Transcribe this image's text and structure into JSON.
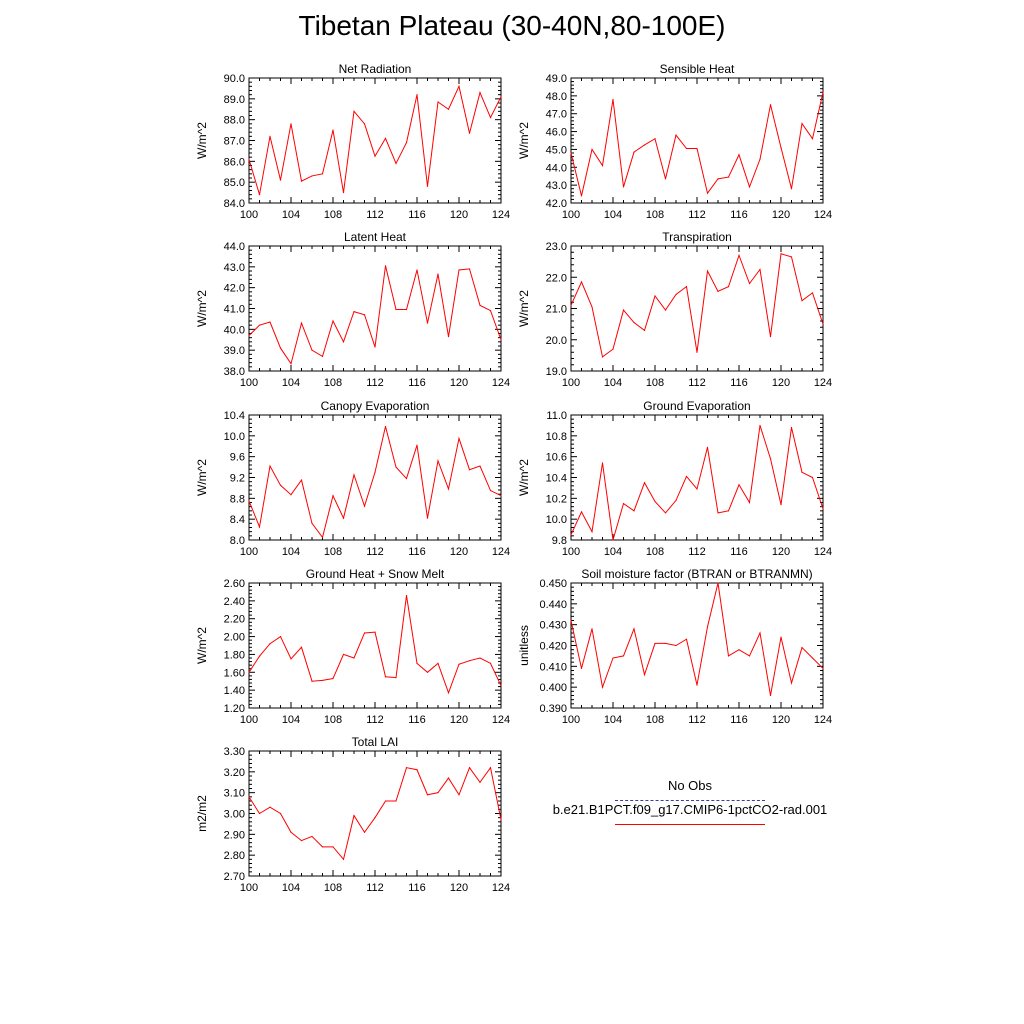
{
  "title": "Tibetan Plateau (30-40N,80-100E)",
  "colors": {
    "model": "#ff0000",
    "obs": "#3b3bb0",
    "axis": "#000000"
  },
  "legend": {
    "obs_label": "No Obs",
    "model_label": "b.e21.B1PCT.f09_g17.CMIP6-1pctCO2-rad.001"
  },
  "chart_data": [
    {
      "type": "line",
      "title": "Net Radiation",
      "ylabel": "W/m^2",
      "xlim": [
        100,
        124
      ],
      "ylim": [
        84.0,
        90.0
      ],
      "xticks": [
        100,
        104,
        108,
        112,
        116,
        120,
        124
      ],
      "yticks": [
        "84.0",
        "85.0",
        "86.0",
        "87.0",
        "88.0",
        "89.0",
        "90.0"
      ],
      "x": [
        100,
        101,
        102,
        103,
        104,
        105,
        106,
        107,
        108,
        109,
        110,
        111,
        112,
        113,
        114,
        115,
        116,
        117,
        118,
        119,
        120,
        121,
        122,
        123,
        124
      ],
      "series": [
        {
          "values": [
            86.1,
            84.4,
            87.2,
            85.1,
            87.8,
            85.05,
            85.3,
            85.4,
            87.5,
            84.5,
            88.4,
            87.8,
            86.25,
            87.1,
            85.9,
            86.9,
            89.2,
            84.8,
            88.85,
            88.5,
            89.6,
            87.35,
            89.3,
            88.1,
            89.1
          ]
        }
      ]
    },
    {
      "type": "line",
      "title": "Sensible Heat",
      "ylabel": "W/m^2",
      "xlim": [
        100,
        124
      ],
      "ylim": [
        42.0,
        49.0
      ],
      "xticks": [
        100,
        104,
        108,
        112,
        116,
        120,
        124
      ],
      "yticks": [
        "42.0",
        "43.0",
        "44.0",
        "45.0",
        "46.0",
        "47.0",
        "48.0",
        "49.0"
      ],
      "x": [
        100,
        101,
        102,
        103,
        104,
        105,
        106,
        107,
        108,
        109,
        110,
        111,
        112,
        113,
        114,
        115,
        116,
        117,
        118,
        119,
        120,
        121,
        122,
        123,
        124
      ],
      "series": [
        {
          "values": [
            44.8,
            42.4,
            45.0,
            44.1,
            47.8,
            42.9,
            44.85,
            45.25,
            45.6,
            43.35,
            45.8,
            45.05,
            45.05,
            42.55,
            43.35,
            43.45,
            44.7,
            42.9,
            44.45,
            47.5,
            45.1,
            42.8,
            46.45,
            45.6,
            48.2
          ]
        }
      ]
    },
    {
      "type": "line",
      "title": "Latent Heat",
      "ylabel": "W/m^2",
      "xlim": [
        100,
        124
      ],
      "ylim": [
        38.0,
        44.0
      ],
      "xticks": [
        100,
        104,
        108,
        112,
        116,
        120,
        124
      ],
      "yticks": [
        "38.0",
        "39.0",
        "40.0",
        "41.0",
        "42.0",
        "43.0",
        "44.0"
      ],
      "x": [
        100,
        101,
        102,
        103,
        104,
        105,
        106,
        107,
        108,
        109,
        110,
        111,
        112,
        113,
        114,
        115,
        116,
        117,
        118,
        119,
        120,
        121,
        122,
        123,
        124
      ],
      "series": [
        {
          "values": [
            39.7,
            40.2,
            40.35,
            39.1,
            38.35,
            40.3,
            39.0,
            38.7,
            40.4,
            39.4,
            40.85,
            40.7,
            39.15,
            43.05,
            40.95,
            40.95,
            42.85,
            40.3,
            42.65,
            39.65,
            42.85,
            42.9,
            41.15,
            40.9,
            39.5
          ]
        }
      ]
    },
    {
      "type": "line",
      "title": "Transpiration",
      "ylabel": "W/m^2",
      "xlim": [
        100,
        124
      ],
      "ylim": [
        19.0,
        23.0
      ],
      "xticks": [
        100,
        104,
        108,
        112,
        116,
        120,
        124
      ],
      "yticks": [
        "19.0",
        "20.0",
        "21.0",
        "22.0",
        "23.0"
      ],
      "x": [
        100,
        101,
        102,
        103,
        104,
        105,
        106,
        107,
        108,
        109,
        110,
        111,
        112,
        113,
        114,
        115,
        116,
        117,
        118,
        119,
        120,
        121,
        122,
        123,
        124
      ],
      "series": [
        {
          "values": [
            21.1,
            21.85,
            21.05,
            19.45,
            19.7,
            20.95,
            20.55,
            20.3,
            21.4,
            20.95,
            21.45,
            21.7,
            19.6,
            22.2,
            21.55,
            21.7,
            22.7,
            21.8,
            22.25,
            20.1,
            22.75,
            22.65,
            21.25,
            21.5,
            20.5
          ]
        }
      ]
    },
    {
      "type": "line",
      "title": "Canopy Evaporation",
      "ylabel": "W/m^2",
      "xlim": [
        100,
        124
      ],
      "ylim": [
        8.0,
        10.4
      ],
      "xticks": [
        100,
        104,
        108,
        112,
        116,
        120,
        124
      ],
      "yticks": [
        "8.0",
        "8.4",
        "8.8",
        "9.2",
        "9.6",
        "10.0",
        "10.4"
      ],
      "x": [
        100,
        101,
        102,
        103,
        104,
        105,
        106,
        107,
        108,
        109,
        110,
        111,
        112,
        113,
        114,
        115,
        116,
        117,
        118,
        119,
        120,
        121,
        122,
        123,
        124
      ],
      "series": [
        {
          "values": [
            8.75,
            8.25,
            9.42,
            9.05,
            8.87,
            9.15,
            8.32,
            8.05,
            8.85,
            8.42,
            9.25,
            8.65,
            9.3,
            10.18,
            9.4,
            9.18,
            9.82,
            8.42,
            9.52,
            8.98,
            9.95,
            9.35,
            9.42,
            8.95,
            8.85
          ]
        }
      ]
    },
    {
      "type": "line",
      "title": "Ground Evaporation",
      "ylabel": "W/m^2",
      "xlim": [
        100,
        124
      ],
      "ylim": [
        9.8,
        11.0
      ],
      "xticks": [
        100,
        104,
        108,
        112,
        116,
        120,
        124
      ],
      "yticks": [
        "9.8",
        "10.0",
        "10.2",
        "10.4",
        "10.6",
        "10.8",
        "11.0"
      ],
      "x": [
        100,
        101,
        102,
        103,
        104,
        105,
        106,
        107,
        108,
        109,
        110,
        111,
        112,
        113,
        114,
        115,
        116,
        117,
        118,
        119,
        120,
        121,
        122,
        123,
        124
      ],
      "series": [
        {
          "values": [
            9.85,
            10.07,
            9.88,
            10.54,
            9.8,
            10.15,
            10.08,
            10.35,
            10.17,
            10.06,
            10.18,
            10.41,
            10.29,
            10.69,
            10.06,
            10.08,
            10.33,
            10.16,
            10.9,
            10.58,
            10.14,
            10.88,
            10.45,
            10.4,
            10.1
          ]
        }
      ]
    },
    {
      "type": "line",
      "title": "Ground Heat + Snow Melt",
      "ylabel": "W/m^2",
      "xlim": [
        100,
        124
      ],
      "ylim": [
        1.2,
        2.6
      ],
      "xticks": [
        100,
        104,
        108,
        112,
        116,
        120,
        124
      ],
      "yticks": [
        "1.20",
        "1.40",
        "1.60",
        "1.80",
        "2.00",
        "2.20",
        "2.40",
        "2.60"
      ],
      "x": [
        100,
        101,
        102,
        103,
        104,
        105,
        106,
        107,
        108,
        109,
        110,
        111,
        112,
        113,
        114,
        115,
        116,
        117,
        118,
        119,
        120,
        121,
        122,
        123,
        124
      ],
      "series": [
        {
          "values": [
            1.6,
            1.78,
            1.92,
            2.0,
            1.75,
            1.88,
            1.5,
            1.51,
            1.53,
            1.8,
            1.76,
            2.04,
            2.05,
            1.55,
            1.54,
            2.46,
            1.7,
            1.6,
            1.7,
            1.37,
            1.69,
            1.73,
            1.76,
            1.7,
            1.45
          ]
        }
      ]
    },
    {
      "type": "line",
      "title": "Soil moisture factor (BTRAN or BTRANMN)",
      "ylabel": "unitless",
      "xlim": [
        100,
        124
      ],
      "ylim": [
        0.39,
        0.45
      ],
      "xticks": [
        100,
        104,
        108,
        112,
        116,
        120,
        124
      ],
      "yticks": [
        "0.390",
        "0.400",
        "0.410",
        "0.420",
        "0.430",
        "0.440",
        "0.450"
      ],
      "x": [
        100,
        101,
        102,
        103,
        104,
        105,
        106,
        107,
        108,
        109,
        110,
        111,
        112,
        113,
        114,
        115,
        116,
        117,
        118,
        119,
        120,
        121,
        122,
        123,
        124
      ],
      "series": [
        {
          "values": [
            0.432,
            0.409,
            0.428,
            0.4,
            0.414,
            0.415,
            0.428,
            0.406,
            0.421,
            0.421,
            0.42,
            0.423,
            0.401,
            0.429,
            0.45,
            0.415,
            0.418,
            0.415,
            0.426,
            0.396,
            0.424,
            0.402,
            0.419,
            0.414,
            0.409
          ]
        }
      ]
    },
    {
      "type": "line",
      "title": "Total LAI",
      "ylabel": "m2/m2",
      "xlim": [
        100,
        124
      ],
      "ylim": [
        2.7,
        3.3
      ],
      "xticks": [
        100,
        104,
        108,
        112,
        116,
        120,
        124
      ],
      "yticks": [
        "2.70",
        "2.80",
        "2.90",
        "3.00",
        "3.10",
        "3.20",
        "3.30"
      ],
      "x": [
        100,
        101,
        102,
        103,
        104,
        105,
        106,
        107,
        108,
        109,
        110,
        111,
        112,
        113,
        114,
        115,
        116,
        117,
        118,
        119,
        120,
        121,
        122,
        123,
        124
      ],
      "series": [
        {
          "values": [
            3.08,
            3.0,
            3.03,
            3.0,
            2.91,
            2.87,
            2.89,
            2.84,
            2.84,
            2.78,
            2.99,
            2.91,
            2.98,
            3.06,
            3.06,
            3.22,
            3.21,
            3.09,
            3.1,
            3.17,
            3.09,
            3.22,
            3.15,
            3.22,
            2.97
          ]
        }
      ]
    }
  ]
}
